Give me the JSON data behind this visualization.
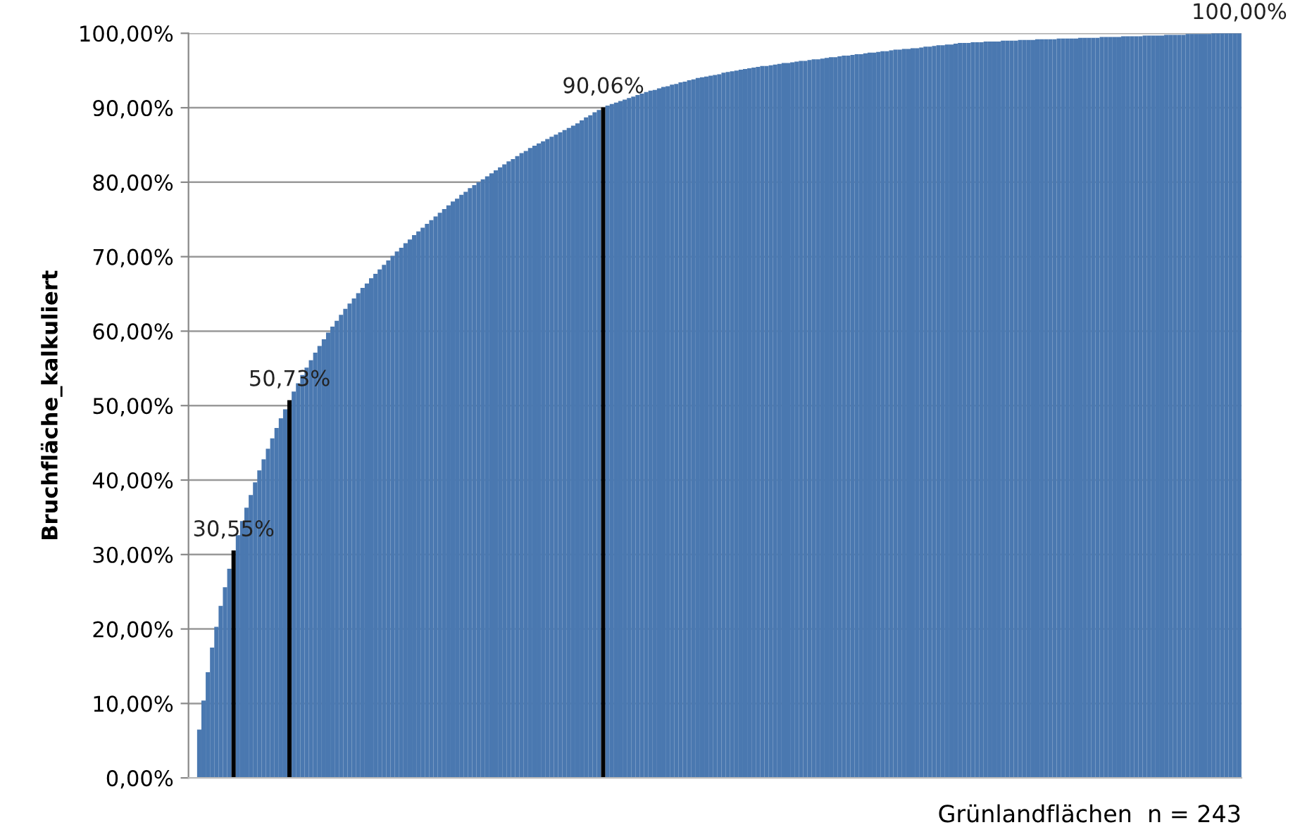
{
  "chart_data": {
    "type": "bar",
    "xlabel": "Grünlandflächen  n = 243",
    "ylabel": "Bruchfläche_kalkuliert",
    "categories": [
      null,
      null,
      null,
      null,
      null,
      null,
      null,
      null,
      null,
      null,
      null,
      null,
      null,
      null,
      null,
      null,
      null,
      null,
      null,
      null,
      null,
      null,
      null,
      null,
      null,
      null,
      null,
      null,
      null,
      null,
      null,
      null,
      null,
      null,
      null,
      null,
      null,
      null,
      null,
      null,
      null,
      null,
      null,
      null,
      null,
      null,
      null,
      null,
      null,
      null,
      null,
      null,
      null,
      null,
      null,
      null,
      null,
      null,
      null,
      null,
      null,
      null,
      null,
      null,
      null,
      null,
      null,
      null,
      null,
      null,
      null,
      null,
      null,
      null,
      null,
      null,
      null,
      null,
      null,
      null,
      null,
      null,
      null,
      null,
      null,
      null,
      null,
      null,
      null,
      null,
      null,
      null,
      null,
      null,
      null,
      null,
      null,
      null,
      null,
      null,
      null,
      null,
      null,
      null,
      null,
      null,
      null,
      null,
      null,
      null,
      null,
      null,
      null,
      null,
      null,
      null,
      null,
      null,
      null,
      null,
      null,
      null,
      null,
      null,
      null,
      null,
      null,
      null,
      null,
      null,
      null,
      null,
      null,
      null,
      null,
      null,
      null,
      null,
      null,
      null,
      null,
      null,
      null,
      null,
      null,
      null,
      null,
      null,
      null,
      null,
      null,
      null,
      null,
      null,
      null,
      null,
      null,
      null,
      null,
      null,
      null,
      null,
      null,
      null,
      null,
      null,
      null,
      null,
      null,
      null,
      null,
      null,
      null,
      null,
      null,
      null,
      null,
      null,
      null,
      null,
      null,
      null,
      null,
      null,
      null,
      null,
      null,
      null,
      null,
      null,
      null,
      null,
      null,
      null,
      null,
      null,
      null,
      null,
      null,
      null,
      null,
      null,
      null,
      null,
      null,
      null,
      null,
      null,
      null,
      null,
      null,
      null,
      null,
      null,
      null,
      null,
      null,
      null,
      null,
      null,
      null,
      null,
      null,
      null,
      null,
      null,
      null,
      null,
      null,
      null,
      null,
      null,
      null,
      null,
      null,
      null,
      null,
      null,
      null,
      null,
      null,
      null,
      null
    ],
    "values": [
      6.5,
      10.4,
      14.2,
      17.5,
      20.3,
      23.1,
      25.6,
      28.1,
      30.55,
      32.6,
      34.5,
      36.3,
      38.0,
      39.7,
      41.3,
      42.8,
      44.2,
      45.6,
      47.0,
      48.3,
      49.5,
      50.73,
      51.9,
      53.0,
      54.1,
      55.1,
      56.1,
      57.1,
      58.0,
      58.9,
      59.8,
      60.6,
      61.4,
      62.2,
      63.0,
      63.7,
      64.4,
      65.1,
      65.8,
      66.4,
      67.1,
      67.7,
      68.3,
      68.9,
      69.5,
      70.1,
      70.7,
      71.2,
      71.8,
      72.3,
      72.9,
      73.4,
      73.9,
      74.4,
      74.9,
      75.4,
      75.9,
      76.4,
      76.9,
      77.4,
      77.8,
      78.3,
      78.7,
      79.2,
      79.6,
      80.0,
      80.4,
      80.8,
      81.2,
      81.6,
      82.0,
      82.4,
      82.8,
      83.1,
      83.5,
      83.9,
      84.2,
      84.6,
      84.9,
      85.2,
      85.5,
      85.8,
      86.1,
      86.4,
      86.7,
      87.0,
      87.3,
      87.6,
      87.9,
      88.3,
      88.7,
      89.0,
      89.4,
      89.7,
      90.06,
      90.3,
      90.5,
      90.7,
      90.9,
      91.1,
      91.3,
      91.5,
      91.7,
      91.9,
      92.1,
      92.3,
      92.4,
      92.6,
      92.8,
      92.9,
      93.1,
      93.2,
      93.4,
      93.5,
      93.7,
      93.8,
      94.0,
      94.1,
      94.2,
      94.3,
      94.4,
      94.5,
      94.7,
      94.8,
      94.9,
      95.0,
      95.1,
      95.2,
      95.3,
      95.4,
      95.5,
      95.6,
      95.6,
      95.7,
      95.8,
      95.9,
      96.0,
      96.0,
      96.1,
      96.2,
      96.3,
      96.3,
      96.4,
      96.5,
      96.5,
      96.6,
      96.7,
      96.8,
      96.8,
      96.9,
      97.0,
      97.0,
      97.1,
      97.2,
      97.2,
      97.3,
      97.4,
      97.4,
      97.5,
      97.6,
      97.6,
      97.7,
      97.8,
      97.8,
      97.9,
      97.9,
      98.0,
      98.0,
      98.1,
      98.2,
      98.2,
      98.3,
      98.4,
      98.4,
      98.5,
      98.5,
      98.6,
      98.7,
      98.7,
      98.7,
      98.8,
      98.8,
      98.8,
      98.9,
      98.9,
      98.9,
      98.9,
      99.0,
      99.0,
      99.0,
      99.0,
      99.1,
      99.1,
      99.1,
      99.1,
      99.2,
      99.2,
      99.2,
      99.2,
      99.2,
      99.3,
      99.3,
      99.3,
      99.3,
      99.3,
      99.4,
      99.4,
      99.4,
      99.4,
      99.4,
      99.5,
      99.5,
      99.5,
      99.5,
      99.5,
      99.6,
      99.6,
      99.6,
      99.6,
      99.6,
      99.7,
      99.7,
      99.7,
      99.7,
      99.7,
      99.8,
      99.8,
      99.8,
      99.8,
      99.8,
      99.9,
      99.9,
      99.9,
      99.9,
      99.9,
      99.9,
      100,
      100,
      100,
      100,
      100,
      100,
      100
    ],
    "colors": [
      "#4a78b0",
      "#4a78b0",
      "#4a78b0",
      "#4a78b0",
      "#4a78b0",
      "#4a78b0",
      "#4a78b0",
      "#4a78b0",
      "#000000",
      "#4a78b0",
      "#4a78b0",
      "#4a78b0",
      "#4a78b0",
      "#4a78b0",
      "#4a78b0",
      "#4a78b0",
      "#4a78b0",
      "#4a78b0",
      "#4a78b0",
      "#4a78b0",
      "#4a78b0",
      "#000000",
      "#4a78b0",
      "#4a78b0",
      "#4a78b0",
      "#4a78b0",
      "#4a78b0",
      "#4a78b0",
      "#4a78b0",
      "#4a78b0",
      "#4a78b0",
      "#4a78b0",
      "#4a78b0",
      "#4a78b0",
      "#4a78b0",
      "#4a78b0",
      "#4a78b0",
      "#4a78b0",
      "#4a78b0",
      "#4a78b0",
      "#4a78b0",
      "#4a78b0",
      "#4a78b0",
      "#4a78b0",
      "#4a78b0",
      "#4a78b0",
      "#4a78b0",
      "#4a78b0",
      "#4a78b0",
      "#4a78b0",
      "#4a78b0",
      "#4a78b0",
      "#4a78b0",
      "#4a78b0",
      "#4a78b0",
      "#4a78b0",
      "#4a78b0",
      "#4a78b0",
      "#4a78b0",
      "#4a78b0",
      "#4a78b0",
      "#4a78b0",
      "#4a78b0",
      "#4a78b0",
      "#4a78b0",
      "#4a78b0",
      "#4a78b0",
      "#4a78b0",
      "#4a78b0",
      "#4a78b0",
      "#4a78b0",
      "#4a78b0",
      "#4a78b0",
      "#4a78b0",
      "#4a78b0",
      "#4a78b0",
      "#4a78b0",
      "#4a78b0",
      "#4a78b0",
      "#4a78b0",
      "#4a78b0",
      "#4a78b0",
      "#4a78b0",
      "#4a78b0",
      "#4a78b0",
      "#4a78b0",
      "#4a78b0",
      "#4a78b0",
      "#4a78b0",
      "#4a78b0",
      "#4a78b0",
      "#4a78b0",
      "#4a78b0",
      "#4a78b0",
      "#000000",
      "#4a78b0",
      "#4a78b0",
      "#4a78b0",
      "#4a78b0",
      "#4a78b0",
      "#4a78b0",
      "#4a78b0",
      "#4a78b0",
      "#4a78b0",
      "#4a78b0",
      "#4a78b0",
      "#4a78b0",
      "#4a78b0",
      "#4a78b0",
      "#4a78b0",
      "#4a78b0",
      "#4a78b0",
      "#4a78b0",
      "#4a78b0",
      "#4a78b0",
      "#4a78b0",
      "#4a78b0",
      "#4a78b0",
      "#4a78b0",
      "#4a78b0",
      "#4a78b0",
      "#4a78b0",
      "#4a78b0",
      "#4a78b0",
      "#4a78b0",
      "#4a78b0",
      "#4a78b0",
      "#4a78b0",
      "#4a78b0",
      "#4a78b0",
      "#4a78b0",
      "#4a78b0",
      "#4a78b0",
      "#4a78b0",
      "#4a78b0",
      "#4a78b0",
      "#4a78b0",
      "#4a78b0",
      "#4a78b0",
      "#4a78b0",
      "#4a78b0",
      "#4a78b0",
      "#4a78b0",
      "#4a78b0",
      "#4a78b0",
      "#4a78b0",
      "#4a78b0",
      "#4a78b0",
      "#4a78b0",
      "#4a78b0",
      "#4a78b0",
      "#4a78b0",
      "#4a78b0",
      "#4a78b0",
      "#4a78b0",
      "#4a78b0",
      "#4a78b0",
      "#4a78b0",
      "#4a78b0",
      "#4a78b0",
      "#4a78b0",
      "#4a78b0",
      "#4a78b0",
      "#4a78b0",
      "#4a78b0",
      "#4a78b0",
      "#4a78b0",
      "#4a78b0",
      "#4a78b0",
      "#4a78b0",
      "#4a78b0",
      "#4a78b0",
      "#4a78b0",
      "#4a78b0",
      "#4a78b0",
      "#4a78b0",
      "#4a78b0",
      "#4a78b0",
      "#4a78b0",
      "#4a78b0",
      "#4a78b0",
      "#4a78b0",
      "#4a78b0",
      "#4a78b0",
      "#4a78b0",
      "#4a78b0",
      "#4a78b0",
      "#4a78b0",
      "#4a78b0",
      "#4a78b0",
      "#4a78b0",
      "#4a78b0",
      "#4a78b0",
      "#4a78b0",
      "#4a78b0",
      "#4a78b0",
      "#4a78b0",
      "#4a78b0",
      "#4a78b0",
      "#4a78b0",
      "#4a78b0",
      "#4a78b0",
      "#4a78b0",
      "#4a78b0",
      "#4a78b0",
      "#4a78b0",
      "#4a78b0",
      "#4a78b0",
      "#4a78b0",
      "#4a78b0",
      "#4a78b0",
      "#4a78b0",
      "#4a78b0",
      "#4a78b0",
      "#4a78b0",
      "#4a78b0",
      "#4a78b0",
      "#4a78b0",
      "#4a78b0",
      "#4a78b0",
      "#4a78b0",
      "#4a78b0",
      "#4a78b0",
      "#4a78b0",
      "#4a78b0",
      "#4a78b0",
      "#4a78b0",
      "#4a78b0",
      "#4a78b0",
      "#4a78b0",
      "#4a78b0",
      "#4a78b0",
      "#4a78b0",
      "#4a78b0",
      "#4a78b0",
      "#4a78b0",
      "#4a78b0",
      "#4a78b0",
      "#4a78b0",
      "#4a78b0",
      "#4a78b0",
      "#4a78b0",
      "#4a78b0"
    ],
    "value_labels": [
      null,
      null,
      null,
      null,
      null,
      null,
      null,
      null,
      "30,55%",
      null,
      null,
      null,
      null,
      null,
      null,
      null,
      null,
      null,
      null,
      null,
      null,
      "50,73%",
      null,
      null,
      null,
      null,
      null,
      null,
      null,
      null,
      null,
      null,
      null,
      null,
      null,
      null,
      null,
      null,
      null,
      null,
      null,
      null,
      null,
      null,
      null,
      null,
      null,
      null,
      null,
      null,
      null,
      null,
      null,
      null,
      null,
      null,
      null,
      null,
      null,
      null,
      null,
      null,
      null,
      null,
      null,
      null,
      null,
      null,
      null,
      null,
      null,
      null,
      null,
      null,
      null,
      null,
      null,
      null,
      null,
      null,
      null,
      null,
      null,
      null,
      null,
      null,
      null,
      null,
      null,
      null,
      null,
      null,
      null,
      null,
      "90,06%",
      null,
      null,
      null,
      null,
      null,
      null,
      null,
      null,
      null,
      null,
      null,
      null,
      null,
      null,
      null,
      null,
      null,
      null,
      null,
      null,
      null,
      null,
      null,
      null,
      null,
      null,
      null,
      null,
      null,
      null,
      null,
      null,
      null,
      null,
      null,
      null,
      null,
      null,
      null,
      null,
      null,
      null,
      null,
      null,
      null,
      null,
      null,
      null,
      null,
      null,
      null,
      null,
      null,
      null,
      null,
      null,
      null,
      null,
      null,
      null,
      null,
      null,
      null,
      null,
      null,
      null,
      null,
      null,
      null,
      null,
      null,
      null,
      null,
      null,
      null,
      null,
      null,
      null,
      null,
      null,
      null,
      null,
      null,
      null,
      null,
      null,
      null,
      null,
      null,
      null,
      null,
      null,
      null,
      null,
      null,
      null,
      null,
      null,
      null,
      null,
      null,
      null,
      null,
      null,
      null,
      null,
      null,
      null,
      null,
      null,
      null,
      null,
      null,
      null,
      null,
      null,
      null,
      null,
      null,
      null,
      null,
      null,
      null,
      null,
      null,
      null,
      null,
      null,
      null,
      null,
      null,
      null,
      null,
      null,
      null,
      null,
      null,
      null,
      null,
      null,
      null,
      null,
      null,
      null,
      null,
      null,
      null,
      "100,00%"
    ],
    "ylim": [
      0,
      100
    ],
    "yticks": [
      {
        "value": 0,
        "label": "0,00%"
      },
      {
        "value": 10,
        "label": "10,00%"
      },
      {
        "value": 20,
        "label": "20,00%"
      },
      {
        "value": 30,
        "label": "30,00%"
      },
      {
        "value": 40,
        "label": "40,00%"
      },
      {
        "value": 50,
        "label": "50,00%"
      },
      {
        "value": 60,
        "label": "60,00%"
      },
      {
        "value": 70,
        "label": "70,00%"
      },
      {
        "value": 80,
        "label": "80,00%"
      },
      {
        "value": 90,
        "label": "90,00%"
      },
      {
        "value": 100,
        "label": "100,00%"
      }
    ],
    "grid": "y",
    "legend": false
  }
}
